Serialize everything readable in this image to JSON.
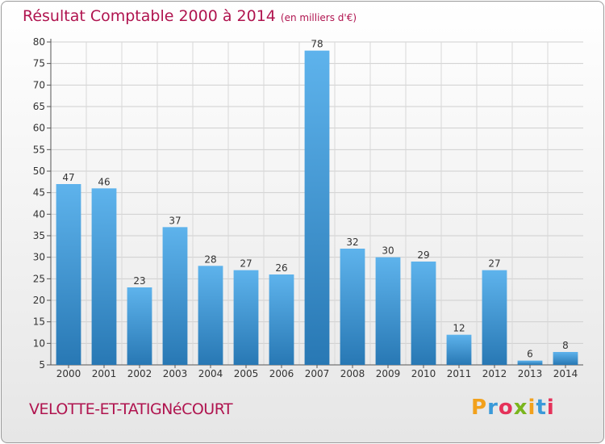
{
  "header": {
    "title": "Résultat Comptable 2000 à 2014",
    "subtitle": "(en milliers d'€)"
  },
  "footer": {
    "commune": "VELOTTE-ET-TATIGNéCOURT",
    "logo_letters": [
      "P",
      "r",
      "o",
      "x",
      "i",
      "t",
      "i"
    ],
    "logo_colors": [
      "#f2a11c",
      "#3a9ad9",
      "#e5325a",
      "#7ab51d",
      "#f2a11c",
      "#3a9ad9",
      "#e5325a"
    ]
  },
  "chart_data": {
    "type": "bar",
    "categories": [
      "2000",
      "2001",
      "2002",
      "2003",
      "2004",
      "2005",
      "2006",
      "2007",
      "2008",
      "2009",
      "2010",
      "2011",
      "2012",
      "2013",
      "2014"
    ],
    "values": [
      47,
      46,
      23,
      37,
      28,
      27,
      26,
      78,
      32,
      30,
      29,
      12,
      27,
      6,
      8
    ],
    "ylim": [
      5,
      80
    ],
    "yticks": [
      5,
      10,
      15,
      20,
      25,
      30,
      35,
      40,
      45,
      50,
      55,
      60,
      65,
      70,
      75,
      80
    ],
    "grid": true,
    "colors": {
      "bar_top": "#5eb3ec",
      "bar_bottom": "#2878b4",
      "title": "#b0144f"
    }
  }
}
